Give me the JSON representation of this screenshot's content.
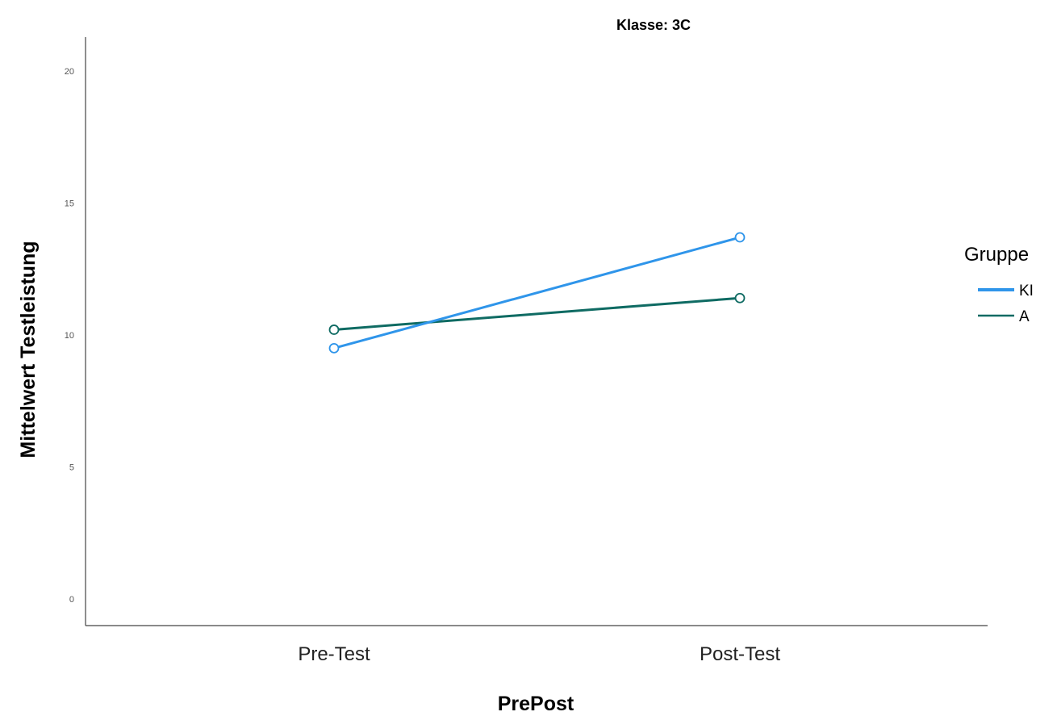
{
  "chart_data": {
    "type": "line",
    "title": "Klasse: 3C",
    "xlabel": "PrePost",
    "ylabel": "Mittelwert Testleistung",
    "categories": [
      "Pre-Test",
      "Post-Test"
    ],
    "ylim": [
      0,
      20
    ],
    "yticks": [
      0,
      5,
      10,
      15,
      20
    ],
    "ytick_labels": [
      "0",
      "5",
      "10",
      "15",
      "20"
    ],
    "grid": false,
    "legend_title": "Gruppe",
    "legend_position": "right",
    "series": [
      {
        "name": "KI",
        "values": [
          9.5,
          13.7
        ],
        "color": "#2f95ea",
        "marker": "circle-open",
        "line_width": 3
      },
      {
        "name": "A",
        "values": [
          10.2,
          11.4
        ],
        "color": "#0f6b63",
        "marker": "circle-open",
        "line_width": 3
      }
    ]
  }
}
